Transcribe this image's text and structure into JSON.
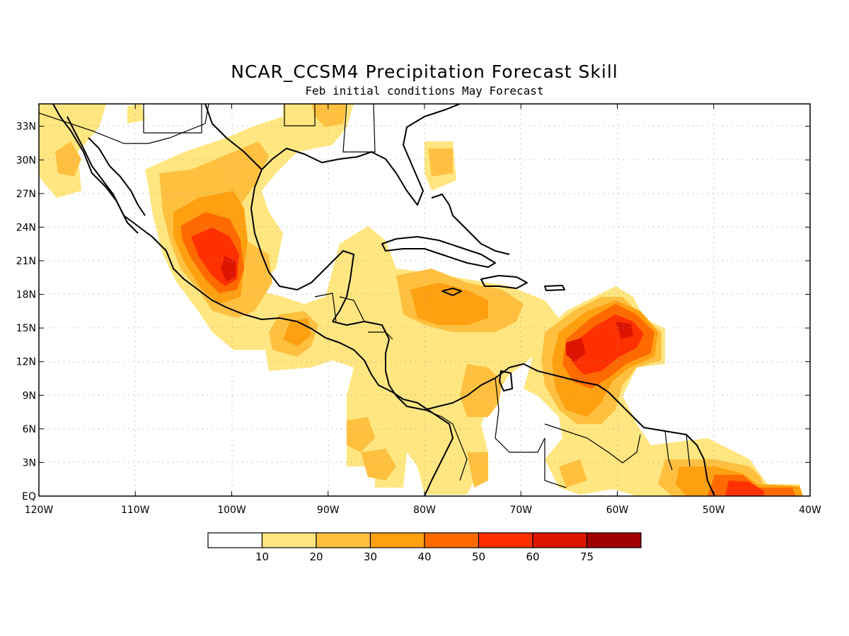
{
  "title": "NCAR_CCSM4 Precipitation Forecast Skill",
  "subtitle": "Feb initial conditions  May Forecast",
  "map": {
    "lon_range": [
      -120,
      -40
    ],
    "lat_range": [
      0,
      35
    ],
    "lon_ticks": [
      {
        "lon": -120,
        "label": "120W"
      },
      {
        "lon": -110,
        "label": "110W"
      },
      {
        "lon": -100,
        "label": "100W"
      },
      {
        "lon": -90,
        "label": "90W"
      },
      {
        "lon": -80,
        "label": "80W"
      },
      {
        "lon": -70,
        "label": "70W"
      },
      {
        "lon": -60,
        "label": "60W"
      },
      {
        "lon": -50,
        "label": "50W"
      },
      {
        "lon": -40,
        "label": "40W"
      }
    ],
    "lat_ticks": [
      {
        "lat": 0,
        "label": "EQ"
      },
      {
        "lat": 3,
        "label": "3N"
      },
      {
        "lat": 6,
        "label": "6N"
      },
      {
        "lat": 9,
        "label": "9N"
      },
      {
        "lat": 12,
        "label": "12N"
      },
      {
        "lat": 15,
        "label": "15N"
      },
      {
        "lat": 18,
        "label": "18N"
      },
      {
        "lat": 21,
        "label": "21N"
      },
      {
        "lat": 24,
        "label": "24N"
      },
      {
        "lat": 27,
        "label": "27N"
      },
      {
        "lat": 30,
        "label": "30N"
      },
      {
        "lat": 33,
        "label": "33N"
      }
    ]
  },
  "colorbar": {
    "colors": [
      "#ffffff",
      "#ffe680",
      "#ffc040",
      "#ffa010",
      "#ff6a00",
      "#ff3000",
      "#dd1500",
      "#a00000"
    ],
    "labels": [
      "10",
      "20",
      "30",
      "40",
      "50",
      "60",
      "75"
    ]
  },
  "colors": {
    "level_1": "#ffe680",
    "level_2": "#ffc040",
    "level_3": "#ffa010",
    "level_4": "#ff6a00",
    "level_5": "#ff3000",
    "level_6": "#dd1500",
    "level_7": "#a00000"
  }
}
